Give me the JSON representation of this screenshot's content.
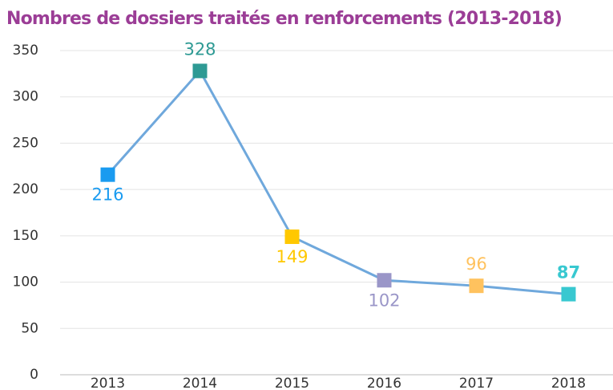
{
  "chart_data": {
    "type": "line",
    "title": "Nombres de dossiers traités en renforcements (2013-2018)",
    "categories": [
      "2013",
      "2014",
      "2015",
      "2016",
      "2017",
      "2018"
    ],
    "values": [
      216,
      328,
      149,
      102,
      96,
      87
    ],
    "line_color": "#6fa8dc",
    "point_colors": [
      "#1a9bf0",
      "#2e9a94",
      "#ffc800",
      "#9a96c8",
      "#ffc25e",
      "#38c8d0"
    ],
    "ylim": [
      0,
      350
    ],
    "yticks": [
      0,
      50,
      100,
      150,
      200,
      250,
      300,
      350
    ],
    "grid": true
  }
}
